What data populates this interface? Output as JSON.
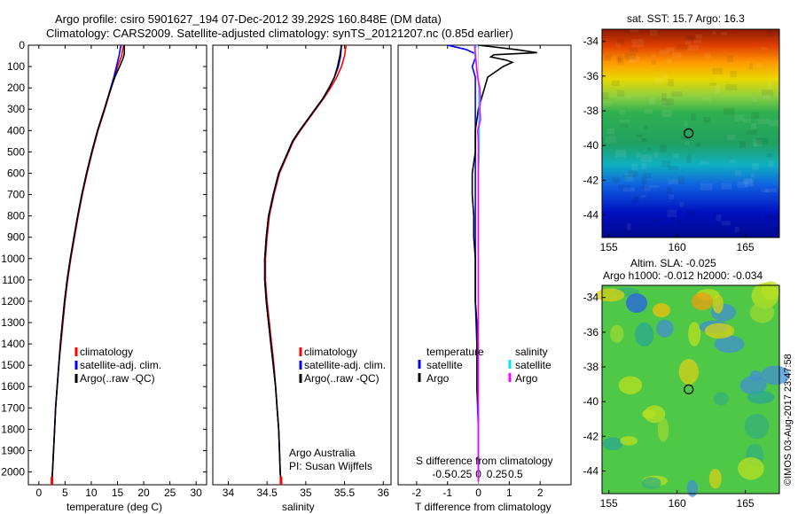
{
  "header": {
    "line1": "Argo profile: csiro 5901627_194 07-Dec-2012 39.292S 160.848E (DM data)",
    "line2": "Climatology: CARS2009. Satellite-adjusted climatology: synTS_20121207.nc (0.85d earlier)"
  },
  "colors": {
    "climatology": "#ff0000",
    "satellite": "#0000ff",
    "argo": "#000000",
    "salinity_satellite": "#00e5ee",
    "salinity_argo": "#ff00ff"
  },
  "chart_data": [
    {
      "type": "line",
      "id": "temperature",
      "xlabel": "temperature (deg C)",
      "xlim": [
        -2,
        32
      ],
      "xticks": [
        0,
        5,
        10,
        15,
        20,
        25,
        30
      ],
      "ylim": [
        2060,
        0
      ],
      "yticks": [
        0,
        100,
        200,
        300,
        400,
        500,
        600,
        700,
        800,
        900,
        1000,
        1100,
        1200,
        1300,
        1400,
        1500,
        1600,
        1700,
        1800,
        1900,
        2000
      ],
      "legend": [
        "climatology",
        "satellite-adj. clim.",
        "Argo(..raw -QC)"
      ],
      "series": [
        {
          "name": "climatology",
          "key": "climatology",
          "y": [
            0,
            20,
            50,
            100,
            150,
            200,
            250,
            300,
            400,
            500,
            600,
            700,
            800,
            900,
            1000,
            1100,
            1200,
            1300,
            1400,
            1500,
            1600,
            1700,
            1800,
            1900,
            2000,
            2045
          ],
          "values": [
            16.2,
            16.0,
            15.8,
            15.0,
            14.4,
            13.8,
            13.2,
            12.6,
            11.3,
            10.2,
            9.2,
            8.3,
            7.5,
            6.8,
            6.1,
            5.5,
            5.0,
            4.6,
            4.2,
            3.8,
            3.5,
            3.2,
            3.0,
            2.8,
            2.6,
            2.5
          ]
        },
        {
          "name": "satellite-adj. clim.",
          "key": "satellite",
          "y": [
            0,
            20,
            50,
            100,
            150,
            200,
            250,
            300,
            400,
            500,
            600,
            700,
            800,
            900,
            1000,
            1100,
            1200,
            1300,
            1400,
            1500,
            1600,
            1700,
            1800,
            1900,
            2000,
            2045
          ],
          "values": [
            15.7,
            15.5,
            15.3,
            14.8,
            14.3,
            13.7,
            13.1,
            12.5,
            11.2,
            10.1,
            9.1,
            8.2,
            7.4,
            6.7,
            6.0,
            5.4,
            4.9,
            4.5,
            4.1,
            3.8,
            3.5,
            3.2,
            3.0,
            2.8,
            2.6,
            2.5
          ]
        },
        {
          "name": "Argo(..raw -QC)",
          "key": "argo",
          "y": [
            0,
            10,
            20,
            30,
            40,
            50,
            60,
            100,
            150,
            200,
            250,
            300,
            400,
            500,
            600,
            700,
            800,
            900,
            1000,
            1100,
            1200,
            1300,
            1400,
            1500,
            1600,
            1700,
            1800,
            1900,
            2000,
            2045
          ],
          "values": [
            16.3,
            16.3,
            16.3,
            16.3,
            16.3,
            16.2,
            16.1,
            15.4,
            14.5,
            13.8,
            13.1,
            12.5,
            11.2,
            10.1,
            9.1,
            8.2,
            7.4,
            6.7,
            6.0,
            5.4,
            4.9,
            4.5,
            4.1,
            3.8,
            3.5,
            3.2,
            3.0,
            2.8,
            2.6,
            2.5
          ]
        }
      ]
    },
    {
      "type": "line",
      "id": "salinity",
      "xlabel": "salinity",
      "xlim": [
        33.8,
        36.1
      ],
      "xticks": [
        34,
        34.5,
        35,
        35.5,
        36
      ],
      "xticklabels": [
        "34",
        "34.5",
        "35",
        "35.5",
        "36"
      ],
      "ylim": [
        2060,
        0
      ],
      "legend": [
        "climatology",
        "satellite-adj. clim.",
        "Argo(..raw -QC)"
      ],
      "annotation": [
        "Argo Australia",
        "PI: Susan Wijffels"
      ],
      "series": [
        {
          "name": "climatology",
          "key": "climatology",
          "y": [
            0,
            50,
            100,
            150,
            200,
            250,
            300,
            350,
            400,
            450,
            500,
            600,
            700,
            800,
            900,
            1000,
            1100,
            1200,
            1300,
            1400,
            1500,
            1600,
            1700,
            1800,
            1900,
            2000,
            2045
          ],
          "values": [
            35.52,
            35.5,
            35.46,
            35.4,
            35.32,
            35.23,
            35.13,
            35.03,
            34.93,
            34.84,
            34.78,
            34.66,
            34.59,
            34.53,
            34.5,
            34.48,
            34.48,
            34.5,
            34.53,
            34.56,
            34.59,
            34.61,
            34.63,
            34.65,
            34.66,
            34.67,
            34.68
          ]
        },
        {
          "name": "satellite-adj. clim.",
          "key": "satellite",
          "y": [
            0,
            50,
            100,
            150,
            200,
            250,
            300,
            350,
            400,
            450,
            500,
            600,
            700,
            800,
            900,
            1000,
            1100,
            1200,
            1300,
            1400,
            1500,
            1600,
            1700,
            1800,
            1900,
            2000,
            2045
          ],
          "values": [
            35.46,
            35.45,
            35.42,
            35.37,
            35.3,
            35.22,
            35.12,
            35.02,
            34.92,
            34.83,
            34.77,
            34.65,
            34.58,
            34.52,
            34.49,
            34.47,
            34.47,
            34.49,
            34.52,
            34.55,
            34.58,
            34.61,
            34.63,
            34.65,
            34.66,
            34.67,
            34.68
          ]
        },
        {
          "name": "Argo(..raw -QC)",
          "key": "argo",
          "y": [
            0,
            50,
            100,
            150,
            200,
            250,
            300,
            350,
            400,
            450,
            500,
            600,
            700,
            800,
            900,
            1000,
            1100,
            1200,
            1300,
            1400,
            1500,
            1600,
            1700,
            1800,
            1900,
            2000,
            2045
          ],
          "values": [
            35.46,
            35.44,
            35.41,
            35.37,
            35.3,
            35.22,
            35.12,
            35.02,
            34.92,
            34.83,
            34.77,
            34.65,
            34.58,
            34.52,
            34.49,
            34.47,
            34.47,
            34.49,
            34.52,
            34.55,
            34.58,
            34.61,
            34.63,
            34.65,
            34.66,
            34.67,
            34.68
          ]
        }
      ]
    },
    {
      "type": "line",
      "id": "difference",
      "xlabel": "T difference from climatology",
      "xlim": [
        -2.6,
        3.0
      ],
      "xticks": [
        -2,
        -1,
        0,
        1,
        2
      ],
      "secondary_axis_label": "S difference from climatology",
      "secondary_ticks": [
        -0.5,
        -0.25,
        0,
        0.25,
        0.5
      ],
      "secondary_ticklabels": [
        "-0.5",
        "-0.25",
        "0",
        "0.25",
        "0.5"
      ],
      "ylim": [
        2060,
        0
      ],
      "legend_temperature": {
        "title": "temperature",
        "items": [
          "satellite",
          "Argo"
        ]
      },
      "legend_salinity": {
        "title": "salinity",
        "items": [
          "satellite",
          "Argo"
        ]
      },
      "series": [
        {
          "name": "satellite",
          "key": "satellite",
          "group": "temperature",
          "y": [
            0,
            20,
            40,
            60,
            100,
            150,
            200,
            300,
            400,
            500,
            600,
            800,
            1000,
            1200,
            1400,
            1600,
            1800,
            2000,
            2045
          ],
          "values": [
            -1.0,
            -0.4,
            -0.1,
            -0.1,
            -0.2,
            -0.1,
            -0.1,
            -0.1,
            -0.1,
            -0.1,
            -0.1,
            -0.1,
            -0.1,
            -0.1,
            -0.05,
            -0.05,
            0,
            0,
            0
          ]
        },
        {
          "name": "Argo",
          "key": "argo",
          "group": "temperature",
          "y": [
            0,
            20,
            35,
            45,
            55,
            70,
            80,
            100,
            150,
            200,
            300,
            400,
            500,
            600,
            700,
            800,
            900,
            1000,
            1100,
            1200,
            1300,
            1400,
            1500,
            1600,
            1700,
            1800,
            1900,
            2000,
            2045
          ],
          "values": [
            0.0,
            1.2,
            1.9,
            0.5,
            0.4,
            0.9,
            1.1,
            0.8,
            0.3,
            0.2,
            0.0,
            -0.1,
            -0.1,
            -0.2,
            -0.2,
            -0.15,
            -0.15,
            -0.1,
            -0.1,
            -0.1,
            -0.05,
            -0.05,
            -0.05,
            -0.05,
            0,
            0,
            0,
            0,
            0
          ]
        },
        {
          "name": "satellite",
          "key": "salinity_satellite",
          "group": "salinity",
          "y": [
            0,
            20,
            40,
            80,
            120,
            200,
            300,
            400,
            500,
            600,
            800,
            1000,
            1200,
            1400,
            1600,
            1800,
            2000,
            2045
          ],
          "values": [
            -0.02,
            -0.05,
            -0.05,
            -0.03,
            -0.02,
            0.01,
            0.01,
            0.01,
            0.01,
            0.0,
            0.0,
            0.0,
            0.0,
            0.0,
            0.0,
            0.0,
            0.0,
            0.0
          ]
        },
        {
          "name": "Argo",
          "key": "salinity_argo",
          "group": "salinity",
          "y": [
            0,
            40,
            80,
            120,
            150,
            200,
            250,
            300,
            350,
            400,
            450,
            500,
            600,
            800,
            1000,
            1200,
            1400,
            1600,
            1800,
            2000,
            2045
          ],
          "values": [
            -0.05,
            -0.04,
            -0.03,
            -0.02,
            -0.01,
            0.02,
            0.03,
            0.02,
            0.03,
            -0.01,
            0.0,
            0.0,
            0.0,
            0.0,
            0.0,
            0.0,
            0.0,
            0.0,
            0.0,
            0.0,
            0.0
          ]
        }
      ]
    },
    {
      "type": "heatmap",
      "id": "sst_map",
      "title": "sat. SST: 15.7 Argo: 16.3",
      "xlim": [
        154.5,
        167.5
      ],
      "ylim": [
        -45.3,
        -33.3
      ],
      "xticks": [
        155,
        160,
        165
      ],
      "yticks": [
        -34,
        -36,
        -38,
        -40,
        -42,
        -44
      ],
      "marker": {
        "lon": 160.848,
        "lat": -39.292
      }
    },
    {
      "type": "heatmap",
      "id": "sla_map",
      "title_lines": [
        "Altim. SLA: -0.025",
        "Argo h1000: -0.012 h2000: -0.034"
      ],
      "xlim": [
        154.5,
        167.5
      ],
      "ylim": [
        -45.3,
        -33.3
      ],
      "xticks": [
        155,
        160,
        165
      ],
      "yticks": [
        -34,
        -36,
        -38,
        -40,
        -42,
        -44
      ],
      "marker": {
        "lon": 160.848,
        "lat": -39.292
      }
    }
  ],
  "footer_stamp": "©IMOS 03-Aug-2017 23:47:58"
}
